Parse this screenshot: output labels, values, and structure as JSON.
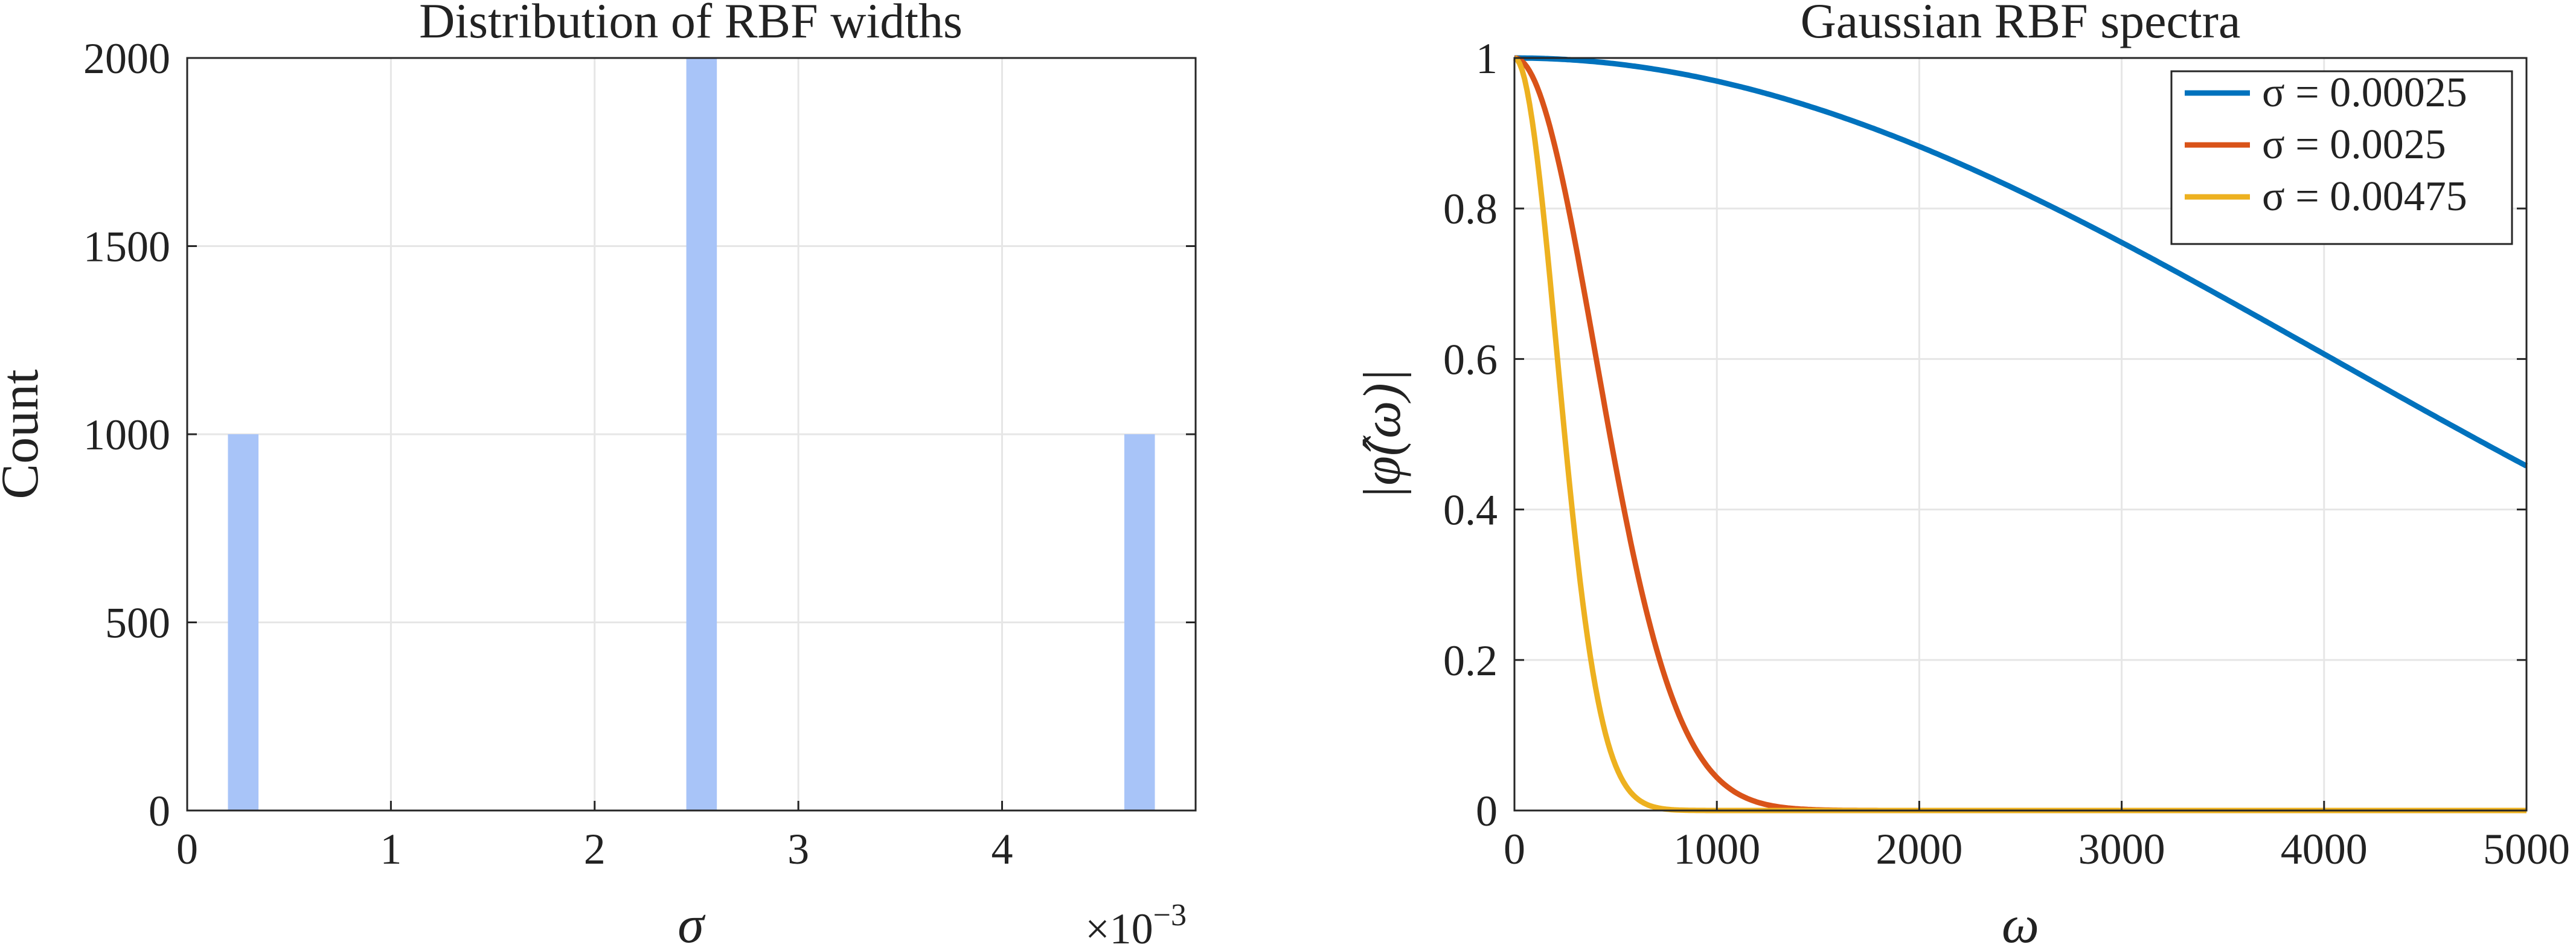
{
  "chart_data": [
    {
      "type": "bar",
      "title": "Distribution of RBF widths",
      "xlabel": "σ",
      "ylabel": "Count",
      "x_scale_label": "×10",
      "x_scale_exponent": "−3",
      "xlim": [
        0,
        4.95
      ],
      "ylim": [
        0,
        2000
      ],
      "xticks": [
        0,
        1,
        2,
        3,
        4
      ],
      "yticks": [
        0,
        500,
        1000,
        1500,
        2000
      ],
      "grid": true,
      "bar_color": "#a8c4f8",
      "bars": [
        {
          "x_start": 0.2,
          "x_end": 0.35,
          "value": 1000
        },
        {
          "x_start": 2.45,
          "x_end": 2.6,
          "value": 2000
        },
        {
          "x_start": 4.6,
          "x_end": 4.75,
          "value": 1000
        }
      ]
    },
    {
      "type": "line",
      "title": "Gaussian RBF spectra",
      "xlabel": "ω",
      "ylabel": "|φ̂(ω)|",
      "xlim": [
        0,
        5000
      ],
      "ylim": [
        0,
        1
      ],
      "xticks": [
        0,
        1000,
        2000,
        3000,
        4000,
        5000
      ],
      "yticks": [
        0,
        0.2,
        0.4,
        0.6,
        0.8,
        1
      ],
      "grid": true,
      "legend_position": "top-right",
      "series": [
        {
          "name": "σ = 0.00025",
          "sigma": 0.00025,
          "color": "#0072bd"
        },
        {
          "name": "σ = 0.0025",
          "sigma": 0.0025,
          "color": "#d95319"
        },
        {
          "name": "σ = 0.00475",
          "sigma": 0.00475,
          "color": "#edb120"
        }
      ]
    }
  ]
}
